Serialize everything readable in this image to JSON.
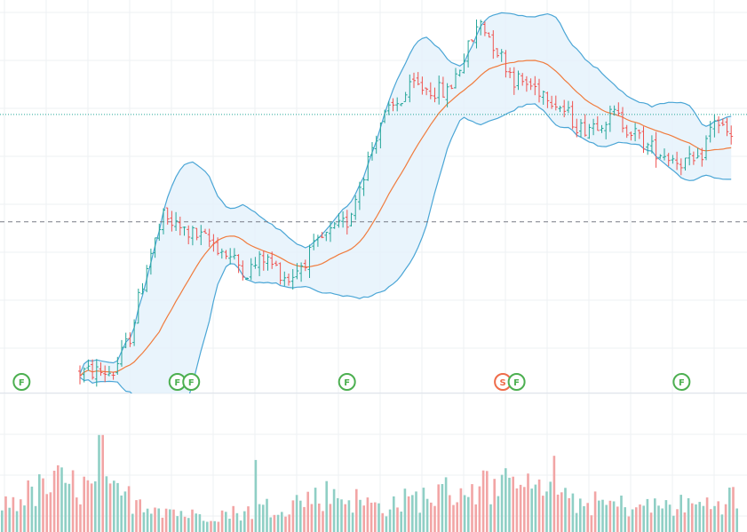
{
  "chart_data": {
    "type": "ohlc",
    "title": "",
    "xlabel": "",
    "ylabel": "",
    "grid": true,
    "indicators": [
      "bollinger-bands",
      "moving-average",
      "volume"
    ],
    "ylim": [
      0,
      11
    ],
    "volume_ylim": [
      0,
      100
    ],
    "reference_lines": [
      {
        "name": "",
        "value": 7.8,
        "style": "dotted",
        "color": "#26a69a"
      },
      {
        "name": "",
        "value": 4.8,
        "style": "dashed",
        "color": "#787b86"
      }
    ],
    "waypoints": [
      [
        0,
        0.6
      ],
      [
        8,
        0.6
      ],
      [
        12,
        1.6
      ],
      [
        16,
        3.6
      ],
      [
        20,
        4.9
      ],
      [
        24,
        4.6
      ],
      [
        32,
        4.2
      ],
      [
        40,
        3.4
      ],
      [
        44,
        3.8
      ],
      [
        50,
        3.2
      ],
      [
        58,
        4.3
      ],
      [
        64,
        4.8
      ],
      [
        72,
        7.6
      ],
      [
        80,
        8.6
      ],
      [
        88,
        8.4
      ],
      [
        96,
        10.4
      ],
      [
        104,
        8.8
      ],
      [
        112,
        8.4
      ],
      [
        120,
        7.4
      ],
      [
        128,
        7.8
      ],
      [
        136,
        6.9
      ],
      [
        144,
        6.5
      ],
      [
        148,
        6.4
      ],
      [
        152,
        7.7
      ],
      [
        156,
        7.1
      ]
    ],
    "volume_profile": [
      [
        0,
        20
      ],
      [
        12,
        35
      ],
      [
        20,
        30
      ],
      [
        30,
        22
      ],
      [
        40,
        12
      ],
      [
        50,
        14
      ],
      [
        60,
        20
      ],
      [
        70,
        28
      ],
      [
        80,
        18
      ],
      [
        96,
        30
      ],
      [
        104,
        34
      ],
      [
        112,
        30
      ],
      [
        120,
        22
      ],
      [
        136,
        18
      ],
      [
        150,
        20
      ],
      [
        156,
        26
      ]
    ],
    "volume_spikes": [
      [
        21,
        70
      ],
      [
        54,
        52
      ],
      [
        107,
        55
      ],
      [
        117,
        55
      ],
      [
        155,
        97
      ]
    ],
    "event_markers": [
      {
        "index": 2,
        "label": "F",
        "color": "#4caf50"
      },
      {
        "index": 36,
        "label": "F",
        "color": "#4caf50"
      },
      {
        "index": 39,
        "label": "F",
        "color": "#4caf50"
      },
      {
        "index": 73,
        "label": "F",
        "color": "#4caf50"
      },
      {
        "index": 107,
        "label": "S",
        "color": "#ef6c4a"
      },
      {
        "index": 110,
        "label": "F",
        "color": "#4caf50"
      },
      {
        "index": 146,
        "label": "F",
        "color": "#4caf50"
      }
    ],
    "colors": {
      "up": "#26a69a",
      "down": "#ef5350",
      "volume_up": "#8fcfc5",
      "volume_down": "#f2a5a5",
      "band_line": "#4ba6d6",
      "band_fill": "#e4f1fb",
      "basis": "#f07c3e",
      "grid": "#eef0f3",
      "divider": "#e0e3eb"
    }
  }
}
